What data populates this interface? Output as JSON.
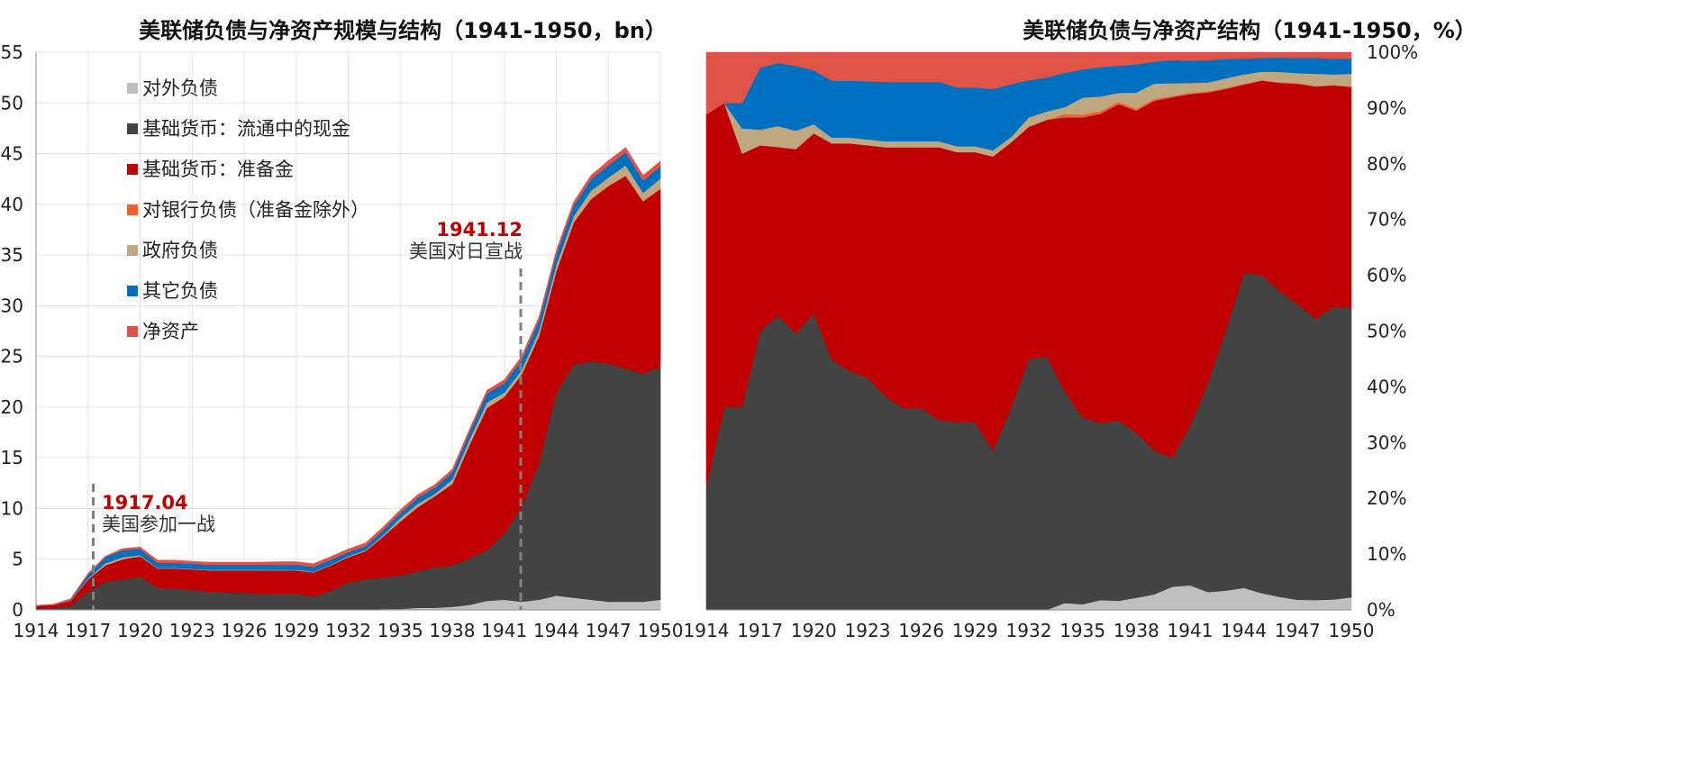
{
  "chart_data": [
    {
      "type": "area",
      "title": "美联储负债与净资产规模与结构（1941-1950，bn）",
      "xlabel": "",
      "ylabel": "",
      "xlim": [
        1914,
        1950
      ],
      "ylim": [
        0,
        55
      ],
      "x_ticks": [
        "1914",
        "1917",
        "1920",
        "1923",
        "1926",
        "1929",
        "1932",
        "1935",
        "1938",
        "1941",
        "1944",
        "1947",
        "1950"
      ],
      "y_ticks": [
        "0",
        "5",
        "10",
        "15",
        "20",
        "25",
        "30",
        "35",
        "40",
        "45",
        "50",
        "55"
      ],
      "grid": true,
      "legend_position": "top-left",
      "x": [
        1914,
        1915,
        1916,
        1917,
        1918,
        1919,
        1920,
        1921,
        1922,
        1923,
        1924,
        1925,
        1926,
        1927,
        1928,
        1929,
        1930,
        1931,
        1932,
        1933,
        1934,
        1935,
        1936,
        1937,
        1938,
        1939,
        1940,
        1941,
        1942,
        1943,
        1944,
        1945,
        1946,
        1947,
        1948,
        1949,
        1950
      ],
      "series": [
        {
          "name": "对外负债",
          "color": "#bfbfbf",
          "values": [
            0,
            0,
            0,
            0,
            0,
            0,
            0,
            0,
            0,
            0,
            0,
            0,
            0,
            0,
            0,
            0,
            0,
            0,
            0,
            0,
            0.1,
            0.1,
            0.2,
            0.2,
            0.3,
            0.5,
            0.9,
            1.0,
            0.8,
            1.0,
            1.4,
            1.2,
            1.0,
            0.8,
            0.8,
            0.8,
            1.0
          ]
        },
        {
          "name": "基础货币：流通中的现金",
          "color": "#434343",
          "values": [
            0.1,
            0.2,
            0.4,
            1.8,
            2.8,
            3.0,
            3.3,
            2.2,
            2.1,
            2.0,
            1.8,
            1.7,
            1.7,
            1.6,
            1.6,
            1.6,
            1.3,
            1.9,
            2.7,
            3.0,
            3.1,
            3.3,
            3.6,
            4.0,
            4.1,
            4.6,
            5.0,
            6.5,
            9.4,
            13.5,
            20.0,
            23.0,
            23.5,
            23.5,
            23.0,
            22.5,
            23.0
          ]
        },
        {
          "name": "基础货币：准备金",
          "color": "#c00000",
          "values": [
            0.3,
            0.3,
            0.5,
            1.2,
            1.6,
            2.0,
            2.0,
            1.9,
            2.0,
            2.0,
            2.1,
            2.2,
            2.2,
            2.3,
            2.3,
            2.3,
            2.4,
            2.5,
            2.5,
            2.8,
            4.0,
            5.3,
            6.3,
            7.0,
            8.0,
            11.2,
            14.0,
            13.5,
            13.0,
            12.5,
            12.0,
            14.0,
            16.0,
            17.5,
            19.0,
            17.0,
            17.5
          ]
        },
        {
          "name": "对银行负债（准备金除外）",
          "color": "#f4602b",
          "values": [
            0,
            0,
            0,
            0,
            0,
            0,
            0,
            0,
            0,
            0,
            0,
            0,
            0,
            0,
            0,
            0,
            0,
            0,
            0,
            0,
            0.05,
            0.05,
            0.05,
            0.05,
            0.05,
            0.05,
            0.05,
            0.05,
            0.05,
            0.05,
            0.05,
            0.05,
            0.05,
            0.05,
            0.05,
            0.05,
            0.05
          ]
        },
        {
          "name": "政府负债",
          "color": "#bfa77f",
          "values": [
            0,
            0,
            0.05,
            0.1,
            0.2,
            0.2,
            0.1,
            0.05,
            0.05,
            0.05,
            0.05,
            0.05,
            0.05,
            0.05,
            0.05,
            0.05,
            0.05,
            0.05,
            0.1,
            0.1,
            0.1,
            0.3,
            0.3,
            0.2,
            0.4,
            0.5,
            0.5,
            0.4,
            0.4,
            0.5,
            0.6,
            0.6,
            0.8,
            0.8,
            1.0,
            0.8,
            1.0
          ]
        },
        {
          "name": "其它负债",
          "color": "#0070c0",
          "values": [
            0,
            0,
            0.05,
            0.4,
            0.6,
            0.7,
            0.6,
            0.5,
            0.5,
            0.5,
            0.5,
            0.5,
            0.5,
            0.5,
            0.5,
            0.5,
            0.5,
            0.5,
            0.4,
            0.4,
            0.5,
            0.5,
            0.6,
            0.6,
            0.7,
            0.7,
            0.9,
            0.9,
            1.0,
            1.0,
            1.0,
            1.0,
            1.1,
            1.2,
            1.3,
            1.2,
            1.2
          ]
        },
        {
          "name": "净资产",
          "color": "#e05347",
          "values": [
            0.05,
            0.05,
            0.1,
            0.1,
            0.1,
            0.15,
            0.2,
            0.25,
            0.25,
            0.25,
            0.25,
            0.25,
            0.25,
            0.25,
            0.3,
            0.3,
            0.3,
            0.3,
            0.3,
            0.3,
            0.3,
            0.3,
            0.3,
            0.3,
            0.3,
            0.3,
            0.3,
            0.35,
            0.35,
            0.35,
            0.4,
            0.4,
            0.4,
            0.45,
            0.45,
            0.5,
            0.5
          ]
        }
      ],
      "annotations": [
        {
          "x": 1917.3,
          "date": "1917.04",
          "text": "美国参加一战"
        },
        {
          "x": 1941.95,
          "date": "1941.12",
          "text": "美国对日宣战"
        }
      ]
    },
    {
      "type": "area",
      "title": "美联储负债与净资产结构（1941-1950，%）",
      "xlabel": "",
      "ylabel": "",
      "xlim": [
        1914,
        1950
      ],
      "ylim": [
        0,
        100
      ],
      "x_ticks": [
        "1914",
        "1917",
        "1920",
        "1923",
        "1926",
        "1929",
        "1932",
        "1935",
        "1938",
        "1941",
        "1944",
        "1947",
        "1950"
      ],
      "y_ticks": [
        "0%",
        "10%",
        "20%",
        "30%",
        "40%",
        "50%",
        "60%",
        "70%",
        "80%",
        "90%",
        "100%"
      ],
      "grid": false,
      "percent_stacked": true
    }
  ]
}
